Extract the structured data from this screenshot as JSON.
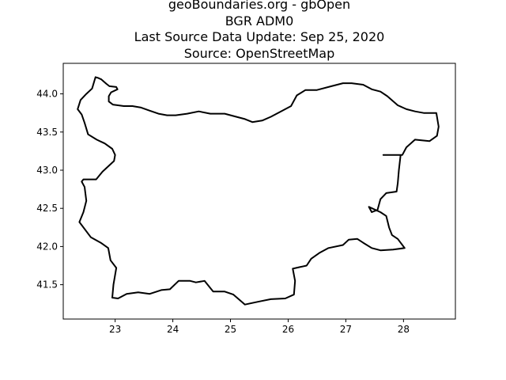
{
  "title_lines": [
    "geoBoundaries.org - gbOpen",
    "BGR ADM0",
    "Last Source Data Update: Sep 25, 2020",
    "Source: OpenStreetMap"
  ],
  "colors": {
    "outline": "#000000",
    "background": "#ffffff",
    "axes_frame": "#000000"
  },
  "chart_data": {
    "type": "map-outline",
    "region": "BGR ADM0",
    "xlim": [
      22.1,
      28.9
    ],
    "ylim": [
      41.05,
      44.4
    ],
    "x_ticks": [
      "23",
      "24",
      "25",
      "26",
      "27",
      "28"
    ],
    "y_ticks": [
      "41.5",
      "42.0",
      "42.5",
      "43.0",
      "43.5",
      "44.0"
    ],
    "grid": false,
    "outline_lonlat": [
      [
        22.66,
        44.22
      ],
      [
        22.7,
        44.21
      ],
      [
        22.76,
        44.19
      ],
      [
        22.85,
        44.13
      ],
      [
        22.9,
        44.1
      ],
      [
        23.02,
        44.09
      ],
      [
        23.04,
        44.06
      ],
      [
        22.93,
        44.02
      ],
      [
        22.89,
        43.97
      ],
      [
        22.89,
        43.9
      ],
      [
        22.96,
        43.86
      ],
      [
        23.15,
        43.84
      ],
      [
        23.3,
        43.84
      ],
      [
        23.45,
        43.82
      ],
      [
        23.6,
        43.78
      ],
      [
        23.75,
        43.74
      ],
      [
        23.9,
        43.72
      ],
      [
        24.05,
        43.72
      ],
      [
        24.25,
        43.74
      ],
      [
        24.45,
        43.77
      ],
      [
        24.65,
        43.74
      ],
      [
        24.9,
        43.74
      ],
      [
        25.1,
        43.7
      ],
      [
        25.25,
        43.67
      ],
      [
        25.38,
        43.63
      ],
      [
        25.55,
        43.65
      ],
      [
        25.7,
        43.7
      ],
      [
        25.85,
        43.76
      ],
      [
        26.05,
        43.84
      ],
      [
        26.15,
        43.98
      ],
      [
        26.3,
        44.05
      ],
      [
        26.5,
        44.05
      ],
      [
        26.75,
        44.1
      ],
      [
        26.95,
        44.14
      ],
      [
        27.1,
        44.14
      ],
      [
        27.3,
        44.12
      ],
      [
        27.45,
        44.06
      ],
      [
        27.6,
        44.03
      ],
      [
        27.72,
        43.97
      ],
      [
        27.9,
        43.85
      ],
      [
        28.05,
        43.8
      ],
      [
        28.2,
        43.77
      ],
      [
        28.35,
        43.75
      ],
      [
        28.57,
        43.75
      ],
      [
        28.61,
        43.57
      ],
      [
        28.58,
        43.45
      ],
      [
        28.45,
        43.38
      ],
      [
        28.2,
        43.4
      ],
      [
        28.05,
        43.3
      ],
      [
        27.98,
        43.2
      ],
      [
        27.8,
        43.2
      ],
      [
        27.65,
        43.2
      ],
      [
        27.95,
        43.2
      ],
      [
        27.92,
        43.0
      ],
      [
        27.9,
        42.83
      ],
      [
        27.88,
        42.72
      ],
      [
        27.7,
        42.7
      ],
      [
        27.6,
        42.62
      ],
      [
        27.55,
        42.48
      ],
      [
        27.45,
        42.45
      ],
      [
        27.4,
        42.52
      ],
      [
        27.6,
        42.45
      ],
      [
        27.7,
        42.4
      ],
      [
        27.75,
        42.25
      ],
      [
        27.8,
        42.15
      ],
      [
        27.9,
        42.1
      ],
      [
        28.02,
        41.98
      ],
      [
        27.82,
        41.96
      ],
      [
        27.6,
        41.95
      ],
      [
        27.45,
        41.98
      ],
      [
        27.3,
        42.05
      ],
      [
        27.2,
        42.1
      ],
      [
        27.05,
        42.09
      ],
      [
        26.95,
        42.02
      ],
      [
        26.7,
        41.98
      ],
      [
        26.55,
        41.92
      ],
      [
        26.4,
        41.84
      ],
      [
        26.32,
        41.75
      ],
      [
        26.2,
        41.73
      ],
      [
        26.08,
        41.71
      ],
      [
        26.12,
        41.55
      ],
      [
        26.1,
        41.37
      ],
      [
        25.95,
        41.32
      ],
      [
        25.7,
        41.31
      ],
      [
        25.5,
        41.28
      ],
      [
        25.25,
        41.24
      ],
      [
        25.05,
        41.37
      ],
      [
        24.9,
        41.41
      ],
      [
        24.7,
        41.41
      ],
      [
        24.55,
        41.55
      ],
      [
        24.4,
        41.53
      ],
      [
        24.3,
        41.55
      ],
      [
        24.1,
        41.55
      ],
      [
        23.95,
        41.44
      ],
      [
        23.8,
        41.43
      ],
      [
        23.6,
        41.38
      ],
      [
        23.4,
        41.4
      ],
      [
        23.2,
        41.38
      ],
      [
        23.05,
        41.32
      ],
      [
        22.95,
        41.33
      ],
      [
        22.97,
        41.5
      ],
      [
        23.02,
        41.72
      ],
      [
        22.92,
        41.82
      ],
      [
        22.88,
        41.98
      ],
      [
        22.75,
        42.05
      ],
      [
        22.58,
        42.12
      ],
      [
        22.38,
        42.32
      ],
      [
        22.45,
        42.45
      ],
      [
        22.5,
        42.6
      ],
      [
        22.47,
        42.78
      ],
      [
        22.42,
        42.85
      ],
      [
        22.45,
        42.88
      ],
      [
        22.67,
        42.88
      ],
      [
        22.78,
        42.98
      ],
      [
        22.98,
        43.12
      ],
      [
        23.0,
        43.2
      ],
      [
        22.95,
        43.28
      ],
      [
        22.82,
        43.35
      ],
      [
        22.68,
        43.4
      ],
      [
        22.53,
        43.47
      ],
      [
        22.47,
        43.62
      ],
      [
        22.42,
        43.73
      ],
      [
        22.35,
        43.8
      ],
      [
        22.4,
        43.92
      ],
      [
        22.5,
        44.0
      ],
      [
        22.6,
        44.07
      ],
      [
        22.66,
        44.22
      ]
    ]
  }
}
